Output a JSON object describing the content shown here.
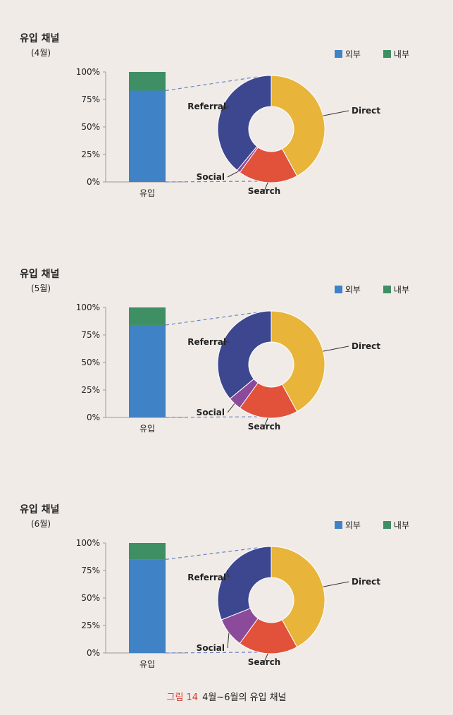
{
  "colors": {
    "external": "#3f82c6",
    "internal": "#3f8f64",
    "axis": "#9a9a9a",
    "dash": "#6d84c4",
    "direct": "#e8b43a",
    "referral": "#3c478f",
    "search": "#e2513a",
    "social": "#8b4a9a"
  },
  "legend": {
    "external": "외부",
    "internal": "내부"
  },
  "caption": {
    "number": "그림 14",
    "text": "4월~6월의 유입 채널"
  },
  "panels": [
    {
      "title": "유입 채널",
      "subtitle": "(4월)"
    },
    {
      "title": "유입 채널",
      "subtitle": "(5월)"
    },
    {
      "title": "유입 채널",
      "subtitle": "(6월)"
    }
  ],
  "chart_data": [
    {
      "type": "bar",
      "title": "유입 채널 (4월)",
      "categories": [
        "유입"
      ],
      "yticks": [
        "100%",
        "75%",
        "50%",
        "25%",
        "0%"
      ],
      "ylim": [
        0,
        100
      ],
      "series": [
        {
          "name": "외부",
          "values": [
            83
          ]
        },
        {
          "name": "내부",
          "values": [
            17
          ]
        }
      ],
      "breakdown": {
        "type": "pie",
        "labels": [
          "Direct",
          "Search",
          "Social",
          "Referral"
        ],
        "values": [
          42,
          18,
          1,
          39
        ]
      }
    },
    {
      "type": "bar",
      "title": "유입 채널 (5월)",
      "categories": [
        "유입"
      ],
      "yticks": [
        "100%",
        "75%",
        "50%",
        "25%",
        "0%"
      ],
      "ylim": [
        0,
        100
      ],
      "series": [
        {
          "name": "외부",
          "values": [
            84
          ]
        },
        {
          "name": "내부",
          "values": [
            16
          ]
        }
      ],
      "breakdown": {
        "type": "pie",
        "labels": [
          "Direct",
          "Search",
          "Social",
          "Referral"
        ],
        "values": [
          42,
          18,
          4,
          36
        ]
      }
    },
    {
      "type": "bar",
      "title": "유입 채널 (6월)",
      "categories": [
        "유입"
      ],
      "yticks": [
        "100%",
        "75%",
        "50%",
        "25%",
        "0%"
      ],
      "ylim": [
        0,
        100
      ],
      "series": [
        {
          "name": "외부",
          "values": [
            85
          ]
        },
        {
          "name": "내부",
          "values": [
            15
          ]
        }
      ],
      "breakdown": {
        "type": "pie",
        "labels": [
          "Direct",
          "Search",
          "Social",
          "Referral"
        ],
        "values": [
          42,
          18,
          9,
          31
        ]
      }
    }
  ]
}
